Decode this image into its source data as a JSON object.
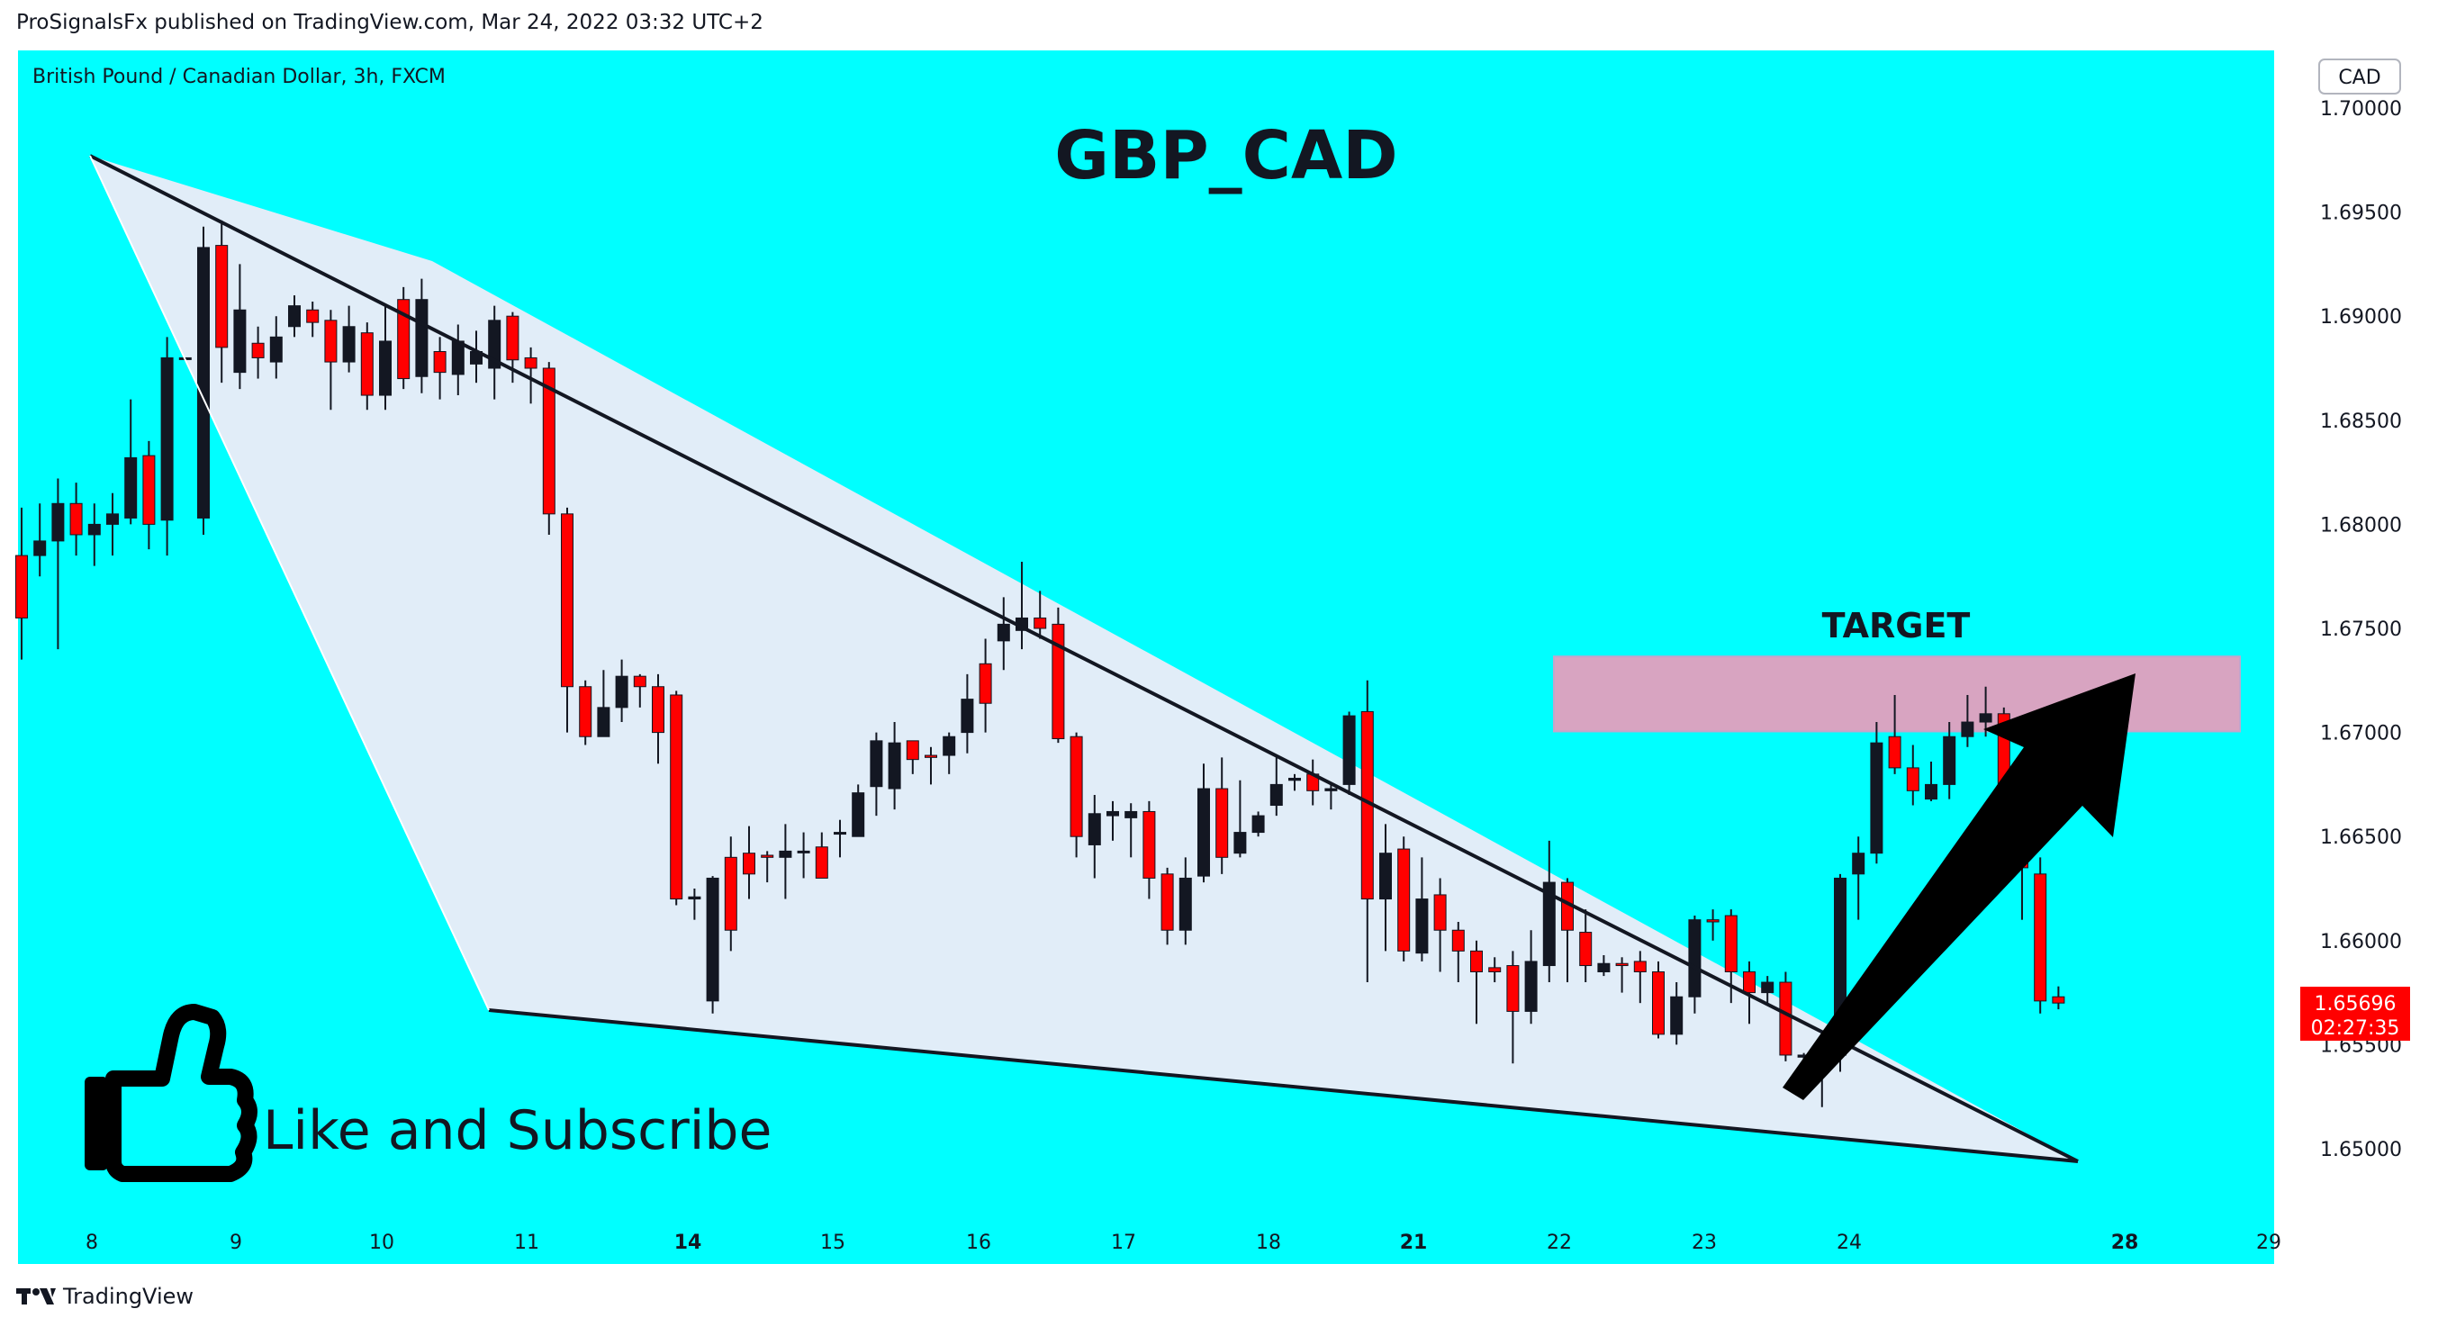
{
  "header": {
    "published_line": "ProSignalsFx published on TradingView.com, Mar 24, 2022 03:32 UTC+2"
  },
  "chart_data": {
    "type": "candlestick",
    "instrument_label": "British Pound / Canadian Dollar, 3h, FXCM",
    "title": "GBP_CAD",
    "currency_badge": "CAD",
    "background_color": "#00ffff",
    "up_color": "#131722",
    "down_color": "#ff0000",
    "ylim": [
      1.6455,
      1.7015
    ],
    "y_ticks": [
      "1.70000",
      "1.69500",
      "1.69000",
      "1.68500",
      "1.68000",
      "1.67500",
      "1.67000",
      "1.66500",
      "1.66000",
      "1.65500",
      "1.65000"
    ],
    "x_ticks": [
      {
        "label": "8",
        "bold": false
      },
      {
        "label": "9",
        "bold": false
      },
      {
        "label": "10",
        "bold": false
      },
      {
        "label": "11",
        "bold": false
      },
      {
        "label": "14",
        "bold": true
      },
      {
        "label": "15",
        "bold": false
      },
      {
        "label": "16",
        "bold": false
      },
      {
        "label": "17",
        "bold": false
      },
      {
        "label": "18",
        "bold": false
      },
      {
        "label": "21",
        "bold": true
      },
      {
        "label": "22",
        "bold": false
      },
      {
        "label": "23",
        "bold": false
      },
      {
        "label": "24",
        "bold": false
      },
      {
        "label": "28",
        "bold": true
      },
      {
        "label": "29",
        "bold": false
      }
    ],
    "last_price": {
      "value": "1.65696",
      "countdown": "02:27:35",
      "color": "#ff0000"
    },
    "candles": [
      [
        1.6785,
        1.6755,
        1.6808,
        1.6735
      ],
      [
        1.6785,
        1.6792,
        1.681,
        1.6775
      ],
      [
        1.6792,
        1.681,
        1.6822,
        1.674
      ],
      [
        1.681,
        1.6795,
        1.682,
        1.6785
      ],
      [
        1.6795,
        1.68,
        1.681,
        1.678
      ],
      [
        1.68,
        1.6805,
        1.6815,
        1.6785
      ],
      [
        1.6803,
        1.6832,
        1.686,
        1.68
      ],
      [
        1.6833,
        1.68,
        1.684,
        1.6788
      ],
      [
        1.6802,
        1.688,
        1.689,
        1.6785
      ],
      [
        1.688,
        1.688,
        1.688,
        1.688
      ],
      [
        1.6803,
        1.6933,
        1.6943,
        1.6795
      ],
      [
        1.6934,
        1.6885,
        1.6946,
        1.6868
      ],
      [
        1.6873,
        1.6903,
        1.6925,
        1.6865
      ],
      [
        1.6887,
        1.688,
        1.6895,
        1.687
      ],
      [
        1.6878,
        1.689,
        1.69,
        1.687
      ],
      [
        1.6895,
        1.6905,
        1.691,
        1.689
      ],
      [
        1.6903,
        1.6897,
        1.6907,
        1.689
      ],
      [
        1.6898,
        1.6878,
        1.6903,
        1.6855
      ],
      [
        1.6878,
        1.6895,
        1.6905,
        1.6873
      ],
      [
        1.6892,
        1.6862,
        1.6897,
        1.6855
      ],
      [
        1.6862,
        1.6888,
        1.6905,
        1.6855
      ],
      [
        1.6908,
        1.687,
        1.6914,
        1.6865
      ],
      [
        1.6871,
        1.6908,
        1.6918,
        1.6863
      ],
      [
        1.6883,
        1.6873,
        1.689,
        1.686
      ],
      [
        1.6872,
        1.6888,
        1.6896,
        1.6862
      ],
      [
        1.6877,
        1.6883,
        1.6893,
        1.6868
      ],
      [
        1.6875,
        1.6898,
        1.6905,
        1.686
      ],
      [
        1.69,
        1.6879,
        1.6902,
        1.6868
      ],
      [
        1.688,
        1.6875,
        1.6885,
        1.6858
      ],
      [
        1.6875,
        1.6805,
        1.6878,
        1.6795
      ],
      [
        1.6805,
        1.6722,
        1.6808,
        1.67
      ],
      [
        1.6722,
        1.6698,
        1.6725,
        1.6694
      ],
      [
        1.6698,
        1.6712,
        1.673,
        1.6698
      ],
      [
        1.6712,
        1.6727,
        1.6735,
        1.6705
      ],
      [
        1.6727,
        1.6722,
        1.6728,
        1.6712
      ],
      [
        1.6722,
        1.67,
        1.6728,
        1.6685
      ],
      [
        1.6718,
        1.662,
        1.672,
        1.6617
      ],
      [
        1.662,
        1.6621,
        1.6625,
        1.661
      ],
      [
        1.6571,
        1.663,
        1.6631,
        1.6565
      ],
      [
        1.664,
        1.6605,
        1.665,
        1.6595
      ],
      [
        1.6642,
        1.6632,
        1.6655,
        1.662
      ],
      [
        1.6641,
        1.664,
        1.6643,
        1.6628
      ],
      [
        1.664,
        1.6643,
        1.6656,
        1.662
      ],
      [
        1.6643,
        1.6643,
        1.6652,
        1.663
      ],
      [
        1.6645,
        1.663,
        1.6652,
        1.663
      ],
      [
        1.6652,
        1.6652,
        1.6658,
        1.664
      ],
      [
        1.665,
        1.6671,
        1.6675,
        1.6652
      ],
      [
        1.6674,
        1.6696,
        1.67,
        1.666
      ],
      [
        1.6673,
        1.6695,
        1.6705,
        1.6663
      ],
      [
        1.6696,
        1.6687,
        1.6696,
        1.668
      ],
      [
        1.6689,
        1.6688,
        1.6693,
        1.6675
      ],
      [
        1.6689,
        1.6698,
        1.67,
        1.668
      ],
      [
        1.67,
        1.6716,
        1.6728,
        1.669
      ],
      [
        1.6733,
        1.6714,
        1.6745,
        1.67
      ],
      [
        1.6744,
        1.6752,
        1.6765,
        1.673
      ],
      [
        1.6749,
        1.6755,
        1.6782,
        1.674
      ],
      [
        1.6755,
        1.675,
        1.6768,
        1.6745
      ],
      [
        1.6752,
        1.6697,
        1.676,
        1.6695
      ],
      [
        1.6698,
        1.665,
        1.67,
        1.664
      ],
      [
        1.6646,
        1.6661,
        1.667,
        1.663
      ],
      [
        1.666,
        1.6662,
        1.6667,
        1.6648
      ],
      [
        1.6659,
        1.6662,
        1.6666,
        1.664
      ],
      [
        1.6662,
        1.663,
        1.6667,
        1.662
      ],
      [
        1.6632,
        1.6605,
        1.6635,
        1.6598
      ],
      [
        1.6605,
        1.663,
        1.664,
        1.6598
      ],
      [
        1.6631,
        1.6673,
        1.6685,
        1.6628
      ],
      [
        1.6673,
        1.664,
        1.6688,
        1.6632
      ],
      [
        1.6642,
        1.6652,
        1.6677,
        1.664
      ],
      [
        1.6652,
        1.666,
        1.6662,
        1.665
      ],
      [
        1.6665,
        1.6675,
        1.6688,
        1.666
      ],
      [
        1.6677,
        1.6678,
        1.668,
        1.6672
      ],
      [
        1.668,
        1.6672,
        1.6687,
        1.6665
      ],
      [
        1.6672,
        1.6673,
        1.6676,
        1.6663
      ],
      [
        1.6675,
        1.6708,
        1.671,
        1.667
      ],
      [
        1.671,
        1.662,
        1.6725,
        1.658
      ],
      [
        1.662,
        1.6642,
        1.6656,
        1.6595
      ],
      [
        1.6644,
        1.6595,
        1.665,
        1.659
      ],
      [
        1.6594,
        1.662,
        1.664,
        1.659
      ],
      [
        1.6622,
        1.6605,
        1.663,
        1.6585
      ],
      [
        1.6605,
        1.6595,
        1.6609,
        1.658
      ],
      [
        1.6595,
        1.6585,
        1.66,
        1.656
      ],
      [
        1.6587,
        1.6585,
        1.6592,
        1.658
      ],
      [
        1.6588,
        1.6566,
        1.6595,
        1.6541
      ],
      [
        1.6566,
        1.659,
        1.6605,
        1.656
      ],
      [
        1.6588,
        1.6628,
        1.6648,
        1.658
      ],
      [
        1.6628,
        1.6605,
        1.663,
        1.658
      ],
      [
        1.6604,
        1.6588,
        1.6615,
        1.658
      ],
      [
        1.6585,
        1.6589,
        1.6593,
        1.6583
      ],
      [
        1.6589,
        1.6588,
        1.6592,
        1.6575
      ],
      [
        1.659,
        1.6585,
        1.6595,
        1.657
      ],
      [
        1.6585,
        1.6555,
        1.659,
        1.6553
      ],
      [
        1.6555,
        1.6573,
        1.658,
        1.655
      ],
      [
        1.6573,
        1.661,
        1.6612,
        1.6565
      ],
      [
        1.661,
        1.6609,
        1.6615,
        1.66
      ],
      [
        1.6612,
        1.6585,
        1.6615,
        1.657
      ],
      [
        1.6585,
        1.6575,
        1.659,
        1.656
      ],
      [
        1.6575,
        1.658,
        1.6583,
        1.657
      ],
      [
        1.658,
        1.6545,
        1.6585,
        1.6542
      ],
      [
        1.6544,
        1.6545,
        1.6546,
        1.654
      ],
      [
        1.6545,
        1.6543,
        1.6555,
        1.652
      ],
      [
        1.6545,
        1.663,
        1.6632,
        1.6537
      ],
      [
        1.6632,
        1.6642,
        1.665,
        1.661
      ],
      [
        1.6642,
        1.6695,
        1.6705,
        1.6637
      ],
      [
        1.6698,
        1.6683,
        1.6718,
        1.668
      ],
      [
        1.6683,
        1.6672,
        1.6694,
        1.6665
      ],
      [
        1.6668,
        1.6675,
        1.6686,
        1.6667
      ],
      [
        1.6675,
        1.6698,
        1.6705,
        1.6668
      ],
      [
        1.6698,
        1.6705,
        1.6718,
        1.6693
      ],
      [
        1.6705,
        1.6709,
        1.6722,
        1.6698
      ],
      [
        1.6709,
        1.6642,
        1.6712,
        1.664
      ],
      [
        1.6642,
        1.6635,
        1.6645,
        1.661
      ],
      [
        1.6632,
        1.6571,
        1.664,
        1.6565
      ],
      [
        1.6573,
        1.657,
        1.6578,
        1.6567
      ]
    ],
    "annotations": {
      "target_label": "TARGET",
      "like_label": "Like and Subscribe",
      "target_zone": [
        1.67005,
        1.67365
      ],
      "target_zone_color": "#d8a4c1",
      "triangle_fill": "#e1edf8",
      "arrow_color": "#000000"
    }
  },
  "footer": {
    "brand": "TradingView"
  }
}
